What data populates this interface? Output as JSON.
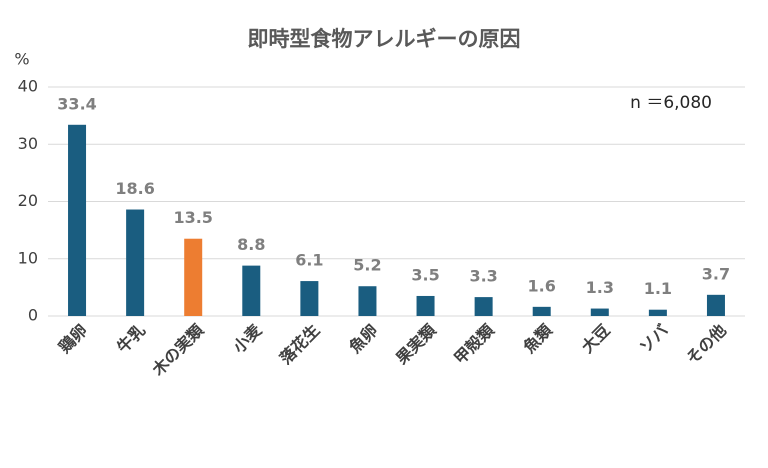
{
  "chart_data": {
    "type": "bar",
    "title": "即時型食物アレルギーの原因",
    "y_label": "%",
    "annotation": "n ＝6,080",
    "categories": [
      "鶏卵",
      "牛乳",
      "木の実類",
      "小麦",
      "落花生",
      "魚卵",
      "果実類",
      "甲殻類",
      "魚類",
      "大豆",
      "ソバ",
      "その他"
    ],
    "values": [
      33.4,
      18.6,
      13.5,
      8.8,
      6.1,
      5.2,
      3.5,
      3.3,
      1.6,
      1.3,
      1.1,
      3.7
    ],
    "colors": [
      "#1a5d80",
      "#1a5d80",
      "#ed7d31",
      "#1a5d80",
      "#1a5d80",
      "#1a5d80",
      "#1a5d80",
      "#1a5d80",
      "#1a5d80",
      "#1a5d80",
      "#1a5d80",
      "#1a5d80"
    ],
    "ylim": [
      0,
      40
    ],
    "yticks": [
      0,
      10,
      20,
      30,
      40
    ],
    "grid": true
  }
}
